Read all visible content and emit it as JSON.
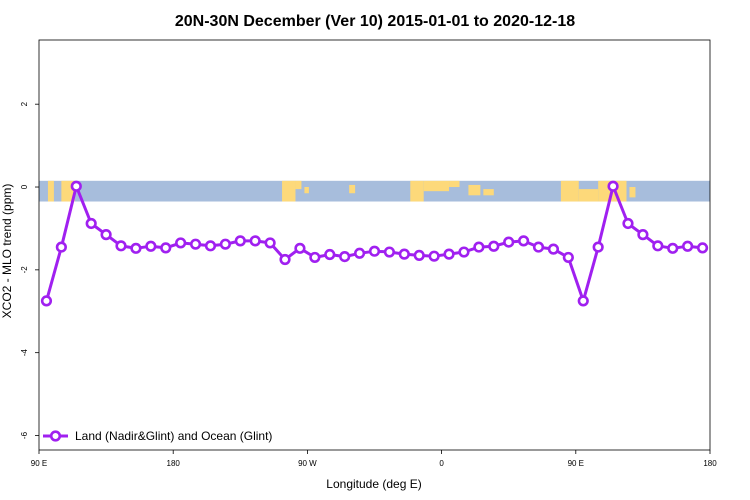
{
  "chart_data": {
    "type": "line",
    "title": "20N-30N December (Ver 10)   2015-01-01 to 2020-12-18",
    "xlabel": "Longitude (deg E)",
    "ylabel": "XCO2 - MLO trend (ppm)",
    "xlim": [
      90,
      540
    ],
    "ylim": [
      -6.35,
      3.55
    ],
    "x_ticks": [
      {
        "value": 90,
        "label": "90 E"
      },
      {
        "value": 180,
        "label": "180"
      },
      {
        "value": 270,
        "label": "90 W"
      },
      {
        "value": 360,
        "label": "0"
      },
      {
        "value": 450,
        "label": "90 E"
      },
      {
        "value": 540,
        "label": "180"
      }
    ],
    "y_ticks": [
      {
        "value": 2,
        "label": "2"
      },
      {
        "value": 0,
        "label": "0"
      },
      {
        "value": -2,
        "label": "-2"
      },
      {
        "value": -4,
        "label": "-4"
      },
      {
        "value": -6,
        "label": "-6"
      }
    ],
    "grid": false,
    "legend_position": "bottom-left",
    "band": {
      "y_top": 0.15,
      "y_bottom": -0.35,
      "ocean_color": "#a7bddc",
      "land_color": "#fdd97a"
    },
    "series": [
      {
        "name": "Land (Nadir&Glint) and Ocean (Glint)",
        "color": "#a020f0",
        "x": [
          95,
          105,
          115,
          125,
          135,
          145,
          155,
          165,
          175,
          185,
          195,
          205,
          215,
          225,
          235,
          245,
          255,
          265,
          275,
          285,
          295,
          305,
          315,
          325,
          335,
          345,
          355,
          365,
          375,
          385,
          395,
          405,
          415,
          425,
          435,
          445,
          455,
          465,
          475,
          485,
          495,
          505,
          515,
          525,
          535
        ],
        "y": [
          -2.75,
          -1.45,
          0.02,
          -0.88,
          -1.15,
          -1.42,
          -1.48,
          -1.43,
          -1.47,
          -1.35,
          -1.38,
          -1.42,
          -1.38,
          -1.3,
          -1.3,
          -1.35,
          -1.75,
          -1.48,
          -1.7,
          -1.63,
          -1.68,
          -1.6,
          -1.55,
          -1.57,
          -1.62,
          -1.65,
          -1.67,
          -1.62,
          -1.57,
          -1.45,
          -1.43,
          -1.33,
          -1.3,
          -1.45,
          -1.5,
          -1.7,
          -2.75,
          -1.45,
          0.02,
          -0.88,
          -1.15,
          -1.42,
          -1.48,
          -1.43,
          -1.47
        ]
      }
    ]
  }
}
